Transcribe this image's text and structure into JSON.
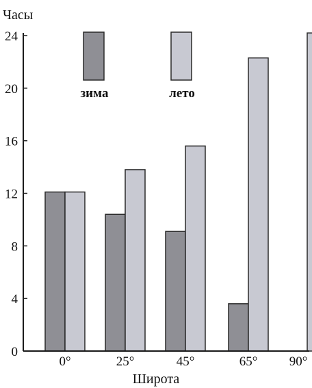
{
  "chart_data": {
    "type": "bar",
    "ylabel": "Часы",
    "xlabel": "Широта",
    "categories": [
      "0°",
      "25°",
      "45°",
      "65°",
      "90°"
    ],
    "yticks": [
      "0",
      "4",
      "8",
      "12",
      "16",
      "20",
      "24"
    ],
    "ylim": [
      0,
      24
    ],
    "grid": false,
    "legend_placement": "top",
    "series": [
      {
        "name": "зима",
        "color": "#8f8f95",
        "values": [
          12.1,
          10.4,
          9.1,
          3.6,
          0
        ]
      },
      {
        "name": "лето",
        "color": "#c8c9d2",
        "values": [
          12.1,
          13.8,
          15.6,
          22.3,
          24.2
        ]
      }
    ]
  }
}
